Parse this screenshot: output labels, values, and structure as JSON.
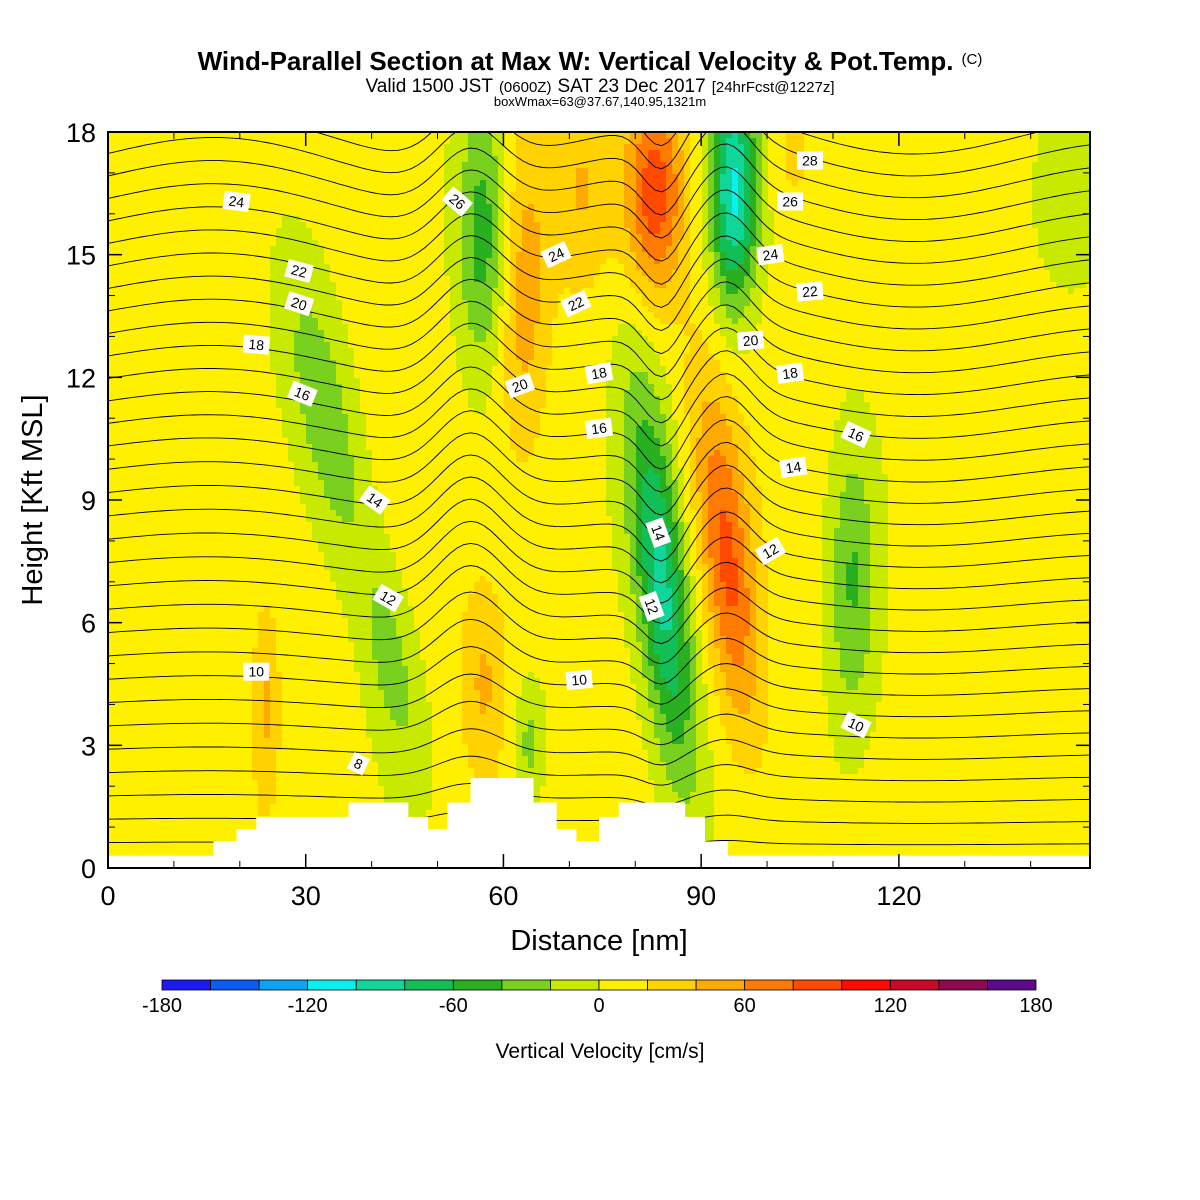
{
  "header": {
    "title": "Wind-Parallel Section at Max W: Vertical Velocity & Pot.Temp.",
    "copyright": "(C)",
    "valid_prefix": "Valid 1500 JST",
    "valid_zulu": "(0600Z)",
    "valid_date": "SAT 23 Dec 2017",
    "forecast": "[24hrFcst@1227z]",
    "box_info": "boxWmax=63@37.67,140.95,1321m"
  },
  "chart_data": {
    "type": "heatmap",
    "xlabel": "Distance [nm]",
    "ylabel": "Height [Kft MSL]",
    "xlim": [
      0,
      149
    ],
    "ylim": [
      0,
      18
    ],
    "x_ticks": [
      0,
      30,
      60,
      90,
      120
    ],
    "y_ticks": [
      0,
      3,
      6,
      9,
      12,
      15,
      18
    ],
    "colorbar": {
      "title": "Vertical Velocity [cm/s]",
      "min": -180,
      "max": 180,
      "step": 20,
      "tick_labels": [
        "-180",
        "-120",
        "-60",
        "0",
        "60",
        "120",
        "180"
      ],
      "tick_values": [
        -180,
        -120,
        -60,
        0,
        60,
        120,
        180
      ],
      "colors": [
        "#1b1bf0",
        "#0a5cf5",
        "#0aa4f5",
        "#0af0f0",
        "#10d69a",
        "#12be56",
        "#28b020",
        "#7ad01e",
        "#c7ea00",
        "#fff000",
        "#ffd200",
        "#ffaa00",
        "#ff7a00",
        "#ff4a00",
        "#ff0a00",
        "#c80a28",
        "#8c0a50",
        "#5c0a8c"
      ]
    },
    "velocity_features": [
      {
        "x": 33,
        "y": 11.0,
        "sx": 5.0,
        "sy": 3.8,
        "tilt": 0.45,
        "value": -45
      },
      {
        "x": 43,
        "y": 5.0,
        "sx": 4.0,
        "sy": 2.8,
        "tilt": 0.35,
        "value": -35
      },
      {
        "x": 57,
        "y": 15.5,
        "sx": 4.0,
        "sy": 3.3,
        "tilt": 0,
        "value": -60
      },
      {
        "x": 63,
        "y": 14.0,
        "sx": 4.0,
        "sy": 4.0,
        "tilt": 0,
        "value": 45
      },
      {
        "x": 57,
        "y": 4.5,
        "sx": 3.5,
        "sy": 2.5,
        "tilt": 0,
        "value": 35
      },
      {
        "x": 64,
        "y": 3.0,
        "sx": 2.5,
        "sy": 1.5,
        "tilt": 0,
        "value": -35
      },
      {
        "x": 84,
        "y": 7.0,
        "sx": 4.0,
        "sy": 4.8,
        "tilt": 0.25,
        "value": -95
      },
      {
        "x": 94,
        "y": 7.5,
        "sx": 4.0,
        "sy": 4.2,
        "tilt": 0.25,
        "value": 75
      },
      {
        "x": 83,
        "y": 16.5,
        "sx": 4.5,
        "sy": 2.5,
        "tilt": 0,
        "value": 85
      },
      {
        "x": 95,
        "y": 16.5,
        "sx": 3.5,
        "sy": 2.8,
        "tilt": 0,
        "value": -110
      },
      {
        "x": 113,
        "y": 7.0,
        "sx": 3.8,
        "sy": 3.5,
        "tilt": 0,
        "value": -50
      },
      {
        "x": 24,
        "y": 4.0,
        "sx": 2.0,
        "sy": 2.5,
        "tilt": 0,
        "value": 35
      },
      {
        "x": 72,
        "y": 16.5,
        "sx": 4.5,
        "sy": 2.5,
        "tilt": 0,
        "value": 30
      },
      {
        "x": 104,
        "y": 17.5,
        "sx": 3.5,
        "sy": 1.5,
        "tilt": 0,
        "value": 20
      },
      {
        "x": 146,
        "y": 16.5,
        "sx": 6.0,
        "sy": 2.5,
        "tilt": 0,
        "value": -20
      }
    ],
    "theta_contour_levels": [
      8,
      10,
      12,
      14,
      16,
      18,
      20,
      22,
      24,
      26,
      28
    ],
    "theta_labels": [
      {
        "text": "24",
        "x": 19.5,
        "y": 16.3,
        "angle": 8
      },
      {
        "text": "26",
        "x": 53,
        "y": 16.3,
        "angle": 40
      },
      {
        "text": "22",
        "x": 29,
        "y": 14.6,
        "angle": 15
      },
      {
        "text": "20",
        "x": 29,
        "y": 13.8,
        "angle": 18
      },
      {
        "text": "18",
        "x": 22.5,
        "y": 12.8,
        "angle": 5
      },
      {
        "text": "16",
        "x": 29.5,
        "y": 11.6,
        "angle": 22
      },
      {
        "text": "14",
        "x": 40.5,
        "y": 9.0,
        "angle": 35
      },
      {
        "text": "12",
        "x": 42.5,
        "y": 6.6,
        "angle": 30
      },
      {
        "text": "10",
        "x": 22.5,
        "y": 4.8,
        "angle": 0
      },
      {
        "text": "8",
        "x": 38,
        "y": 2.55,
        "angle": 25
      },
      {
        "text": "24",
        "x": 68,
        "y": 15.0,
        "angle": -25
      },
      {
        "text": "22",
        "x": 71,
        "y": 13.8,
        "angle": -25
      },
      {
        "text": "20",
        "x": 62.5,
        "y": 11.8,
        "angle": -20
      },
      {
        "text": "18",
        "x": 74.5,
        "y": 12.1,
        "angle": -10
      },
      {
        "text": "16",
        "x": 74.5,
        "y": 10.75,
        "angle": -8
      },
      {
        "text": "14",
        "x": 83.5,
        "y": 8.2,
        "angle": 70
      },
      {
        "text": "12",
        "x": 82.5,
        "y": 6.4,
        "angle": 70
      },
      {
        "text": "10",
        "x": 71.5,
        "y": 4.6,
        "angle": -5
      },
      {
        "text": "28",
        "x": 106.5,
        "y": 17.3,
        "angle": 0
      },
      {
        "text": "26",
        "x": 103.5,
        "y": 16.3,
        "angle": 0
      },
      {
        "text": "24",
        "x": 100.5,
        "y": 15.0,
        "angle": -8
      },
      {
        "text": "22",
        "x": 106.5,
        "y": 14.1,
        "angle": -5
      },
      {
        "text": "20",
        "x": 97.5,
        "y": 12.9,
        "angle": -5
      },
      {
        "text": "18",
        "x": 103.5,
        "y": 12.1,
        "angle": -8
      },
      {
        "text": "16",
        "x": 113.5,
        "y": 10.6,
        "angle": 25
      },
      {
        "text": "14",
        "x": 104,
        "y": 9.8,
        "angle": -8
      },
      {
        "text": "12",
        "x": 100.5,
        "y": 7.75,
        "angle": -30
      },
      {
        "text": "10",
        "x": 113.5,
        "y": 3.5,
        "angle": 25
      }
    ],
    "terrain_heights_kft": [
      {
        "x0": 0,
        "x1": 16,
        "h": 0.3
      },
      {
        "x0": 16,
        "x1": 19.5,
        "h": 0.65
      },
      {
        "x0": 19.5,
        "x1": 22.5,
        "h": 0.95
      },
      {
        "x0": 22.5,
        "x1": 36.5,
        "h": 1.25
      },
      {
        "x0": 36.5,
        "x1": 45.5,
        "h": 1.6
      },
      {
        "x0": 45.5,
        "x1": 48.5,
        "h": 1.25
      },
      {
        "x0": 48.5,
        "x1": 51.5,
        "h": 0.95
      },
      {
        "x0": 51.5,
        "x1": 55,
        "h": 1.6
      },
      {
        "x0": 55,
        "x1": 64.5,
        "h": 2.2
      },
      {
        "x0": 64.5,
        "x1": 68,
        "h": 1.6
      },
      {
        "x0": 68,
        "x1": 71,
        "h": 0.95
      },
      {
        "x0": 71,
        "x1": 74.5,
        "h": 0.65
      },
      {
        "x0": 74.5,
        "x1": 77.5,
        "h": 1.25
      },
      {
        "x0": 77.5,
        "x1": 87.5,
        "h": 1.6
      },
      {
        "x0": 87.5,
        "x1": 90.5,
        "h": 1.25
      },
      {
        "x0": 90.5,
        "x1": 94,
        "h": 0.65
      },
      {
        "x0": 94,
        "x1": 149,
        "h": 0.3
      }
    ]
  }
}
